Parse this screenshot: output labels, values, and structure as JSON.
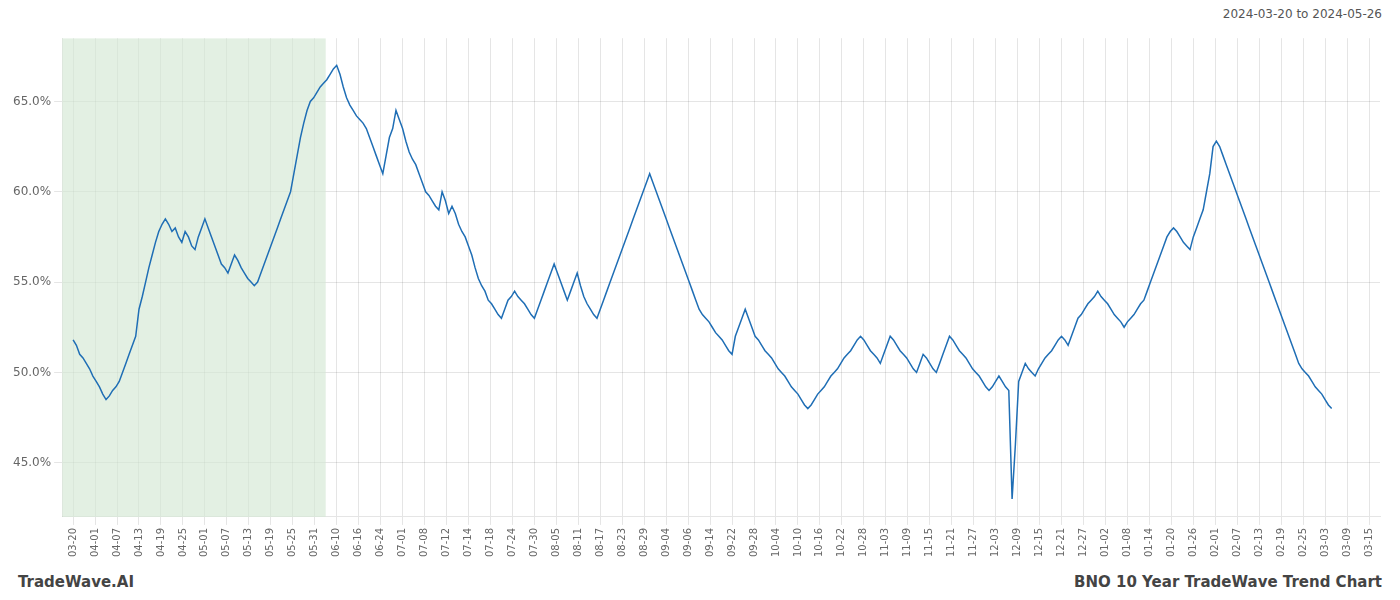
{
  "chart_data": {
    "type": "line",
    "annotations": [
      "2024-03-20 to 2024-05-26",
      "TradeWave.AI",
      "BNO 10 Year TradeWave Trend Chart"
    ],
    "color": "#1f6eb5",
    "grid": true,
    "bands": [
      {
        "x": [
          -0.5,
          11.5
        ],
        "color": "#d4e8d4"
      }
    ],
    "xlim": [
      -0.5,
      59.5
    ],
    "xticks": [
      {
        "value": 0,
        "label": "03-20"
      },
      {
        "value": 1,
        "label": "04-01"
      },
      {
        "value": 2,
        "label": "04-07"
      },
      {
        "value": 3,
        "label": "04-13"
      },
      {
        "value": 4,
        "label": "04-19"
      },
      {
        "value": 5,
        "label": "04-25"
      },
      {
        "value": 6,
        "label": "05-01"
      },
      {
        "value": 7,
        "label": "05-07"
      },
      {
        "value": 8,
        "label": "05-13"
      },
      {
        "value": 9,
        "label": "05-19"
      },
      {
        "value": 10,
        "label": "05-25"
      },
      {
        "value": 11,
        "label": "05-31"
      },
      {
        "value": 12,
        "label": "06-10"
      },
      {
        "value": 13,
        "label": "06-16"
      },
      {
        "value": 14,
        "label": "06-24"
      },
      {
        "value": 15,
        "label": "07-01"
      },
      {
        "value": 16,
        "label": "07-08"
      },
      {
        "value": 17,
        "label": "07-12"
      },
      {
        "value": 18,
        "label": "07-14"
      },
      {
        "value": 19,
        "label": "07-18"
      },
      {
        "value": 20,
        "label": "07-24"
      },
      {
        "value": 21,
        "label": "07-30"
      },
      {
        "value": 22,
        "label": "08-05"
      },
      {
        "value": 23,
        "label": "08-11"
      },
      {
        "value": 24,
        "label": "08-17"
      },
      {
        "value": 25,
        "label": "08-23"
      },
      {
        "value": 26,
        "label": "08-29"
      },
      {
        "value": 27,
        "label": "09-04"
      },
      {
        "value": 28,
        "label": "09-06"
      },
      {
        "value": 29,
        "label": "09-14"
      },
      {
        "value": 30,
        "label": "09-22"
      },
      {
        "value": 31,
        "label": "09-28"
      },
      {
        "value": 32,
        "label": "10-04"
      },
      {
        "value": 33,
        "label": "10-10"
      },
      {
        "value": 34,
        "label": "10-16"
      },
      {
        "value": 35,
        "label": "10-22"
      },
      {
        "value": 36,
        "label": "10-28"
      },
      {
        "value": 37,
        "label": "11-03"
      },
      {
        "value": 38,
        "label": "11-09"
      },
      {
        "value": 39,
        "label": "11-15"
      },
      {
        "value": 40,
        "label": "11-21"
      },
      {
        "value": 41,
        "label": "11-27"
      },
      {
        "value": 42,
        "label": "12-03"
      },
      {
        "value": 43,
        "label": "12-09"
      },
      {
        "value": 44,
        "label": "12-15"
      },
      {
        "value": 45,
        "label": "12-21"
      },
      {
        "value": 46,
        "label": "12-27"
      },
      {
        "value": 47,
        "label": "01-02"
      },
      {
        "value": 48,
        "label": "01-08"
      },
      {
        "value": 49,
        "label": "01-14"
      },
      {
        "value": 50,
        "label": "01-20"
      },
      {
        "value": 51,
        "label": "01-26"
      },
      {
        "value": 52,
        "label": "02-01"
      },
      {
        "value": 53,
        "label": "02-07"
      },
      {
        "value": 54,
        "label": "02-13"
      },
      {
        "value": 55,
        "label": "02-19"
      },
      {
        "value": 56,
        "label": "02-25"
      },
      {
        "value": 57,
        "label": "03-03"
      },
      {
        "value": 58,
        "label": "03-09"
      },
      {
        "value": 59,
        "label": "03-15"
      }
    ],
    "ylim": [
      42,
      68.5
    ],
    "yticks": [
      {
        "value": 45,
        "label": "45.0%"
      },
      {
        "value": 50,
        "label": "50.0%"
      },
      {
        "value": 55,
        "label": "55.0%"
      },
      {
        "value": 60,
        "label": "60.0%"
      },
      {
        "value": 65,
        "label": "65.0%"
      }
    ],
    "x": [
      0.0,
      0.15,
      0.3,
      0.45,
      0.6,
      0.75,
      0.9,
      1.05,
      1.2,
      1.35,
      1.5,
      1.65,
      1.8,
      1.95,
      2.1,
      2.25,
      2.4,
      2.55,
      2.7,
      2.85,
      3.0,
      3.15,
      3.3,
      3.45,
      3.6,
      3.75,
      3.9,
      4.05,
      4.2,
      4.35,
      4.5,
      4.65,
      4.8,
      4.95,
      5.1,
      5.25,
      5.4,
      5.55,
      5.7,
      5.85,
      6.0,
      6.15,
      6.3,
      6.45,
      6.6,
      6.75,
      6.9,
      7.05,
      7.2,
      7.35,
      7.5,
      7.65,
      7.8,
      7.95,
      8.1,
      8.25,
      8.4,
      8.55,
      8.7,
      8.85,
      9.0,
      9.15,
      9.3,
      9.45,
      9.6,
      9.75,
      9.9,
      10.05,
      10.2,
      10.35,
      10.5,
      10.65,
      10.8,
      10.95,
      11.1,
      11.25,
      11.4,
      11.55,
      11.7,
      11.85,
      12.0,
      12.15,
      12.3,
      12.45,
      12.6,
      12.75,
      12.9,
      13.05,
      13.2,
      13.35,
      13.5,
      13.65,
      13.8,
      13.95,
      14.1,
      14.25,
      14.4,
      14.55,
      14.7,
      14.85,
      15.0,
      15.15,
      15.3,
      15.45,
      15.6,
      15.75,
      15.9,
      16.05,
      16.2,
      16.35,
      16.5,
      16.65,
      16.8,
      16.95,
      17.1,
      17.25,
      17.4,
      17.55,
      17.7,
      17.85,
      18.0,
      18.15,
      18.3,
      18.45,
      18.6,
      18.75,
      18.9,
      19.05,
      19.2,
      19.35,
      19.5,
      19.65,
      19.8,
      19.95,
      20.1,
      20.25,
      20.4,
      20.55,
      20.7,
      20.85,
      21.0,
      21.15,
      21.3,
      21.45,
      21.6,
      21.75,
      21.9,
      22.05,
      22.2,
      22.35,
      22.5,
      22.65,
      22.8,
      22.95,
      23.1,
      23.25,
      23.4,
      23.55,
      23.7,
      23.85,
      24.0,
      24.15,
      24.3,
      24.45,
      24.6,
      24.75,
      24.9,
      25.05,
      25.2,
      25.35,
      25.5,
      25.65,
      25.8,
      25.95,
      26.1,
      26.25,
      26.4,
      26.55,
      26.7,
      26.85,
      27.0,
      27.15,
      27.3,
      27.45,
      27.6,
      27.75,
      27.9,
      28.05,
      28.2,
      28.35,
      28.5,
      28.65,
      28.8,
      28.95,
      29.1,
      29.25,
      29.4,
      29.55,
      29.7,
      29.85,
      30.0,
      30.15,
      30.3,
      30.45,
      30.6,
      30.75,
      30.9,
      31.05,
      31.2,
      31.35,
      31.5,
      31.65,
      31.8,
      31.95,
      32.1,
      32.25,
      32.4,
      32.55,
      32.7,
      32.85,
      33.0,
      33.15,
      33.3,
      33.45,
      33.6,
      33.75,
      33.9,
      34.05,
      34.2,
      34.35,
      34.5,
      34.65,
      34.8,
      34.95,
      35.1,
      35.25,
      35.4,
      35.55,
      35.7,
      35.85,
      36.0,
      36.15,
      36.3,
      36.45,
      36.6,
      36.75,
      36.9,
      37.05,
      37.2,
      37.35,
      37.5,
      37.65,
      37.8,
      37.95,
      38.1,
      38.25,
      38.4,
      38.55,
      38.7,
      38.85,
      39.0,
      39.15,
      39.3,
      39.45,
      39.6,
      39.75,
      39.9,
      40.05,
      40.2,
      40.35,
      40.5,
      40.65,
      40.8,
      40.95,
      41.1,
      41.25,
      41.4,
      41.55,
      41.7,
      41.85,
      42.0,
      42.15,
      42.3,
      42.45,
      42.6,
      42.75,
      42.9,
      43.05,
      43.2,
      43.35,
      43.5,
      43.65,
      43.8,
      43.95,
      44.1,
      44.25,
      44.4,
      44.55,
      44.7,
      44.85,
      45.0,
      45.15,
      45.3,
      45.45,
      45.6,
      45.75,
      45.9,
      46.05,
      46.2,
      46.35,
      46.5,
      46.65,
      46.8,
      46.95,
      47.1,
      47.25,
      47.4,
      47.55,
      47.7,
      47.85,
      48.0,
      48.15,
      48.3,
      48.45,
      48.6,
      48.75,
      48.9,
      49.05,
      49.2,
      49.35,
      49.5,
      49.65,
      49.8,
      49.95,
      50.1,
      50.25,
      50.4,
      50.55,
      50.7,
      50.85,
      51.0,
      51.15,
      51.3,
      51.45,
      51.6,
      51.75,
      51.9,
      52.05,
      52.2,
      52.35,
      52.5,
      52.65,
      52.8,
      52.95,
      53.1,
      53.25,
      53.4,
      53.55,
      53.7,
      53.85,
      54.0,
      54.15,
      54.3,
      54.45,
      54.6,
      54.75,
      54.9,
      55.05,
      55.2,
      55.35,
      55.5,
      55.65,
      55.8,
      55.95,
      56.1,
      56.25,
      56.4,
      56.55,
      56.7,
      56.85,
      57.0,
      57.15,
      57.3
    ],
    "values": [
      51.8,
      51.5,
      51.0,
      50.8,
      50.5,
      50.2,
      49.8,
      49.5,
      49.2,
      48.8,
      48.5,
      48.7,
      49.0,
      49.2,
      49.5,
      50.0,
      50.5,
      51.0,
      51.5,
      52.0,
      53.5,
      54.2,
      55.0,
      55.8,
      56.5,
      57.2,
      57.8,
      58.2,
      58.5,
      58.2,
      57.8,
      58.0,
      57.5,
      57.2,
      57.8,
      57.5,
      57.0,
      56.8,
      57.5,
      58.0,
      58.5,
      58.0,
      57.5,
      57.0,
      56.5,
      56.0,
      55.8,
      55.5,
      56.0,
      56.5,
      56.2,
      55.8,
      55.5,
      55.2,
      55.0,
      54.8,
      55.0,
      55.5,
      56.0,
      56.5,
      57.0,
      57.5,
      58.0,
      58.5,
      59.0,
      59.5,
      60.0,
      61.0,
      62.0,
      63.0,
      63.8,
      64.5,
      65.0,
      65.2,
      65.5,
      65.8,
      66.0,
      66.2,
      66.5,
      66.8,
      67.0,
      66.5,
      65.8,
      65.2,
      64.8,
      64.5,
      64.2,
      64.0,
      63.8,
      63.5,
      63.0,
      62.5,
      62.0,
      61.5,
      61.0,
      62.0,
      63.0,
      63.5,
      64.5,
      64.0,
      63.5,
      62.8,
      62.2,
      61.8,
      61.5,
      61.0,
      60.5,
      60.0,
      59.8,
      59.5,
      59.2,
      59.0,
      60.0,
      59.5,
      58.8,
      59.2,
      58.8,
      58.2,
      57.8,
      57.5,
      57.0,
      56.5,
      55.8,
      55.2,
      54.8,
      54.5,
      54.0,
      53.8,
      53.5,
      53.2,
      53.0,
      53.5,
      54.0,
      54.2,
      54.5,
      54.2,
      54.0,
      53.8,
      53.5,
      53.2,
      53.0,
      53.5,
      54.0,
      54.5,
      55.0,
      55.5,
      56.0,
      55.5,
      55.0,
      54.5,
      54.0,
      54.5,
      55.0,
      55.5,
      54.8,
      54.2,
      53.8,
      53.5,
      53.2,
      53.0,
      53.5,
      54.0,
      54.5,
      55.0,
      55.5,
      56.0,
      56.5,
      57.0,
      57.5,
      58.0,
      58.5,
      59.0,
      59.5,
      60.0,
      60.5,
      61.0,
      60.5,
      60.0,
      59.5,
      59.0,
      58.5,
      58.0,
      57.5,
      57.0,
      56.5,
      56.0,
      55.5,
      55.0,
      54.5,
      54.0,
      53.5,
      53.2,
      53.0,
      52.8,
      52.5,
      52.2,
      52.0,
      51.8,
      51.5,
      51.2,
      51.0,
      52.0,
      52.5,
      53.0,
      53.5,
      53.0,
      52.5,
      52.0,
      51.8,
      51.5,
      51.2,
      51.0,
      50.8,
      50.5,
      50.2,
      50.0,
      49.8,
      49.5,
      49.2,
      49.0,
      48.8,
      48.5,
      48.2,
      48.0,
      48.2,
      48.5,
      48.8,
      49.0,
      49.2,
      49.5,
      49.8,
      50.0,
      50.2,
      50.5,
      50.8,
      51.0,
      51.2,
      51.5,
      51.8,
      52.0,
      51.8,
      51.5,
      51.2,
      51.0,
      50.8,
      50.5,
      51.0,
      51.5,
      52.0,
      51.8,
      51.5,
      51.2,
      51.0,
      50.8,
      50.5,
      50.2,
      50.0,
      50.5,
      51.0,
      50.8,
      50.5,
      50.2,
      50.0,
      50.5,
      51.0,
      51.5,
      52.0,
      51.8,
      51.5,
      51.2,
      51.0,
      50.8,
      50.5,
      50.2,
      50.0,
      49.8,
      49.5,
      49.2,
      49.0,
      49.2,
      49.5,
      49.8,
      49.5,
      49.2,
      49.0,
      43.0,
      46.0,
      49.5,
      50.0,
      50.5,
      50.2,
      50.0,
      49.8,
      50.2,
      50.5,
      50.8,
      51.0,
      51.2,
      51.5,
      51.8,
      52.0,
      51.8,
      51.5,
      52.0,
      52.5,
      53.0,
      53.2,
      53.5,
      53.8,
      54.0,
      54.2,
      54.5,
      54.2,
      54.0,
      53.8,
      53.5,
      53.2,
      53.0,
      52.8,
      52.5,
      52.8,
      53.0,
      53.2,
      53.5,
      53.8,
      54.0,
      54.5,
      55.0,
      55.5,
      56.0,
      56.5,
      57.0,
      57.5,
      57.8,
      58.0,
      57.8,
      57.5,
      57.2,
      57.0,
      56.8,
      57.5,
      58.0,
      58.5,
      59.0,
      60.0,
      61.0,
      62.5,
      62.8,
      62.5,
      62.0,
      61.5,
      61.0,
      60.5,
      60.0,
      59.5,
      59.0,
      58.5,
      58.0,
      57.5,
      57.0,
      56.5,
      56.0,
      55.5,
      55.0,
      54.5,
      54.0,
      53.5,
      53.0,
      52.5,
      52.0,
      51.5,
      51.0,
      50.5,
      50.2,
      50.0,
      49.8,
      49.5,
      49.2,
      49.0,
      48.8,
      48.5,
      48.2,
      48.0
    ]
  }
}
